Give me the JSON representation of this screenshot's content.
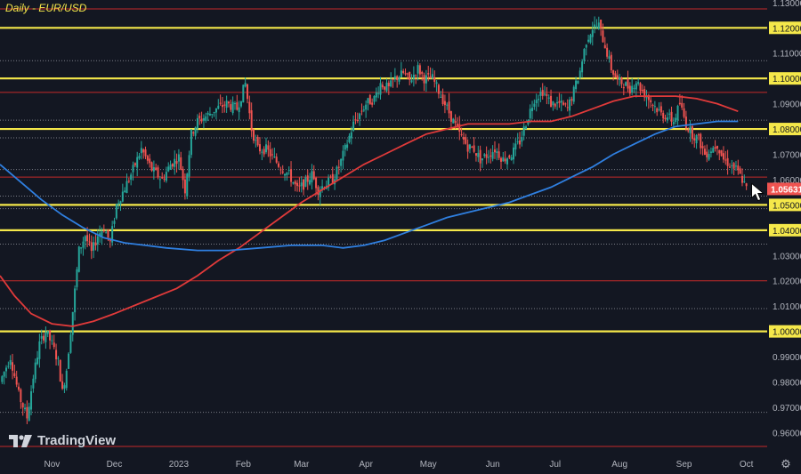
{
  "chart_title": "Daily - EUR/USD",
  "brand_label": "TradingView",
  "settings_icon": "gear-icon",
  "colors": {
    "background": "#131722",
    "grid_text": "#b2b5be",
    "yellow_level": "#f5e84a",
    "red_level": "#c42a2a",
    "dotted_level": "#9598a1",
    "ma_red": "#e03a3a",
    "ma_blue": "#2f7fe0",
    "candle_up": "#26a69a",
    "candle_down": "#ef5350",
    "price_label_bg": "#ef5350"
  },
  "chart_data": {
    "type": "candlestick",
    "title": "Daily - EUR/USD",
    "ylim": [
      0.951,
      1.131
    ],
    "y_ticks": [
      "0.96000",
      "0.97000",
      "0.98000",
      "0.99000",
      "1.00000",
      "1.01000",
      "1.02000",
      "1.03000",
      "1.04000",
      "1.05000",
      "1.06000",
      "1.07000",
      "1.08000",
      "1.09000",
      "1.10000",
      "1.11000",
      "1.12000",
      "1.13000"
    ],
    "x_ticks": [
      {
        "label": "Nov",
        "day": 0
      },
      {
        "label": "Dec",
        "day": 30
      },
      {
        "label": "2023",
        "day": 61
      },
      {
        "label": "Feb",
        "day": 92
      },
      {
        "label": "Mar",
        "day": 120
      },
      {
        "label": "Apr",
        "day": 151
      },
      {
        "label": "May",
        "day": 181
      },
      {
        "label": "Jun",
        "day": 212
      },
      {
        "label": "Jul",
        "day": 242
      },
      {
        "label": "Aug",
        "day": 273
      },
      {
        "label": "Sep",
        "day": 304
      },
      {
        "label": "Oct",
        "day": 334
      }
    ],
    "day_range": [
      -25,
      344
    ],
    "yellow_levels": [
      1.12,
      1.1,
      1.08,
      1.05,
      1.04,
      1.0
    ],
    "red_levels": [
      1.1275,
      1.0945,
      1.061,
      1.02,
      0.9545
    ],
    "dotted_levels": [
      1.107,
      1.0835,
      1.0765,
      1.064,
      1.0535,
      1.0485,
      1.0345,
      1.009,
      0.968
    ],
    "current_price": "1.05631",
    "current_price_value": 1.05631,
    "price_path": [
      [
        -25,
        0.98
      ],
      [
        -20,
        0.99
      ],
      [
        -16,
        0.975
      ],
      [
        -12,
        0.966
      ],
      [
        -9,
        0.982
      ],
      [
        -6,
        0.995
      ],
      [
        -3,
        1.0
      ],
      [
        0,
        0.995
      ],
      [
        3,
        0.988
      ],
      [
        5,
        0.976
      ],
      [
        7,
        0.985
      ],
      [
        10,
        1.008
      ],
      [
        13,
        1.032
      ],
      [
        16,
        1.038
      ],
      [
        19,
        1.031
      ],
      [
        22,
        1.038
      ],
      [
        25,
        1.041
      ],
      [
        28,
        1.035
      ],
      [
        31,
        1.05
      ],
      [
        34,
        1.055
      ],
      [
        38,
        1.062
      ],
      [
        43,
        1.072
      ],
      [
        48,
        1.064
      ],
      [
        53,
        1.06
      ],
      [
        57,
        1.066
      ],
      [
        61,
        1.069
      ],
      [
        64,
        1.056
      ],
      [
        67,
        1.078
      ],
      [
        70,
        1.083
      ],
      [
        74,
        1.085
      ],
      [
        79,
        1.088
      ],
      [
        84,
        1.09
      ],
      [
        89,
        1.088
      ],
      [
        93,
        1.098
      ],
      [
        96,
        1.08
      ],
      [
        99,
        1.072
      ],
      [
        103,
        1.072
      ],
      [
        107,
        1.068
      ],
      [
        110,
        1.065
      ],
      [
        114,
        1.062
      ],
      [
        118,
        1.056
      ],
      [
        121,
        1.058
      ],
      [
        125,
        1.062
      ],
      [
        128,
        1.056
      ],
      [
        131,
        1.058
      ],
      [
        135,
        1.06
      ],
      [
        138,
        1.065
      ],
      [
        141,
        1.072
      ],
      [
        145,
        1.082
      ],
      [
        148,
        1.086
      ],
      [
        151,
        1.09
      ],
      [
        155,
        1.092
      ],
      [
        158,
        1.098
      ],
      [
        162,
        1.096
      ],
      [
        165,
        1.1
      ],
      [
        169,
        1.102
      ],
      [
        172,
        1.099
      ],
      [
        176,
        1.104
      ],
      [
        179,
        1.1
      ],
      [
        183,
        1.1
      ],
      [
        186,
        1.095
      ],
      [
        189,
        1.09
      ],
      [
        193,
        1.083
      ],
      [
        196,
        1.078
      ],
      [
        200,
        1.073
      ],
      [
        203,
        1.072
      ],
      [
        206,
        1.068
      ],
      [
        210,
        1.07
      ],
      [
        213,
        1.072
      ],
      [
        217,
        1.068
      ],
      [
        221,
        1.07
      ],
      [
        225,
        1.075
      ],
      [
        229,
        1.085
      ],
      [
        232,
        1.092
      ],
      [
        236,
        1.095
      ],
      [
        240,
        1.09
      ],
      [
        244,
        1.09
      ],
      [
        248,
        1.088
      ],
      [
        251,
        1.095
      ],
      [
        254,
        1.103
      ],
      [
        257,
        1.115
      ],
      [
        260,
        1.12
      ],
      [
        263,
        1.121
      ],
      [
        266,
        1.113
      ],
      [
        269,
        1.104
      ],
      [
        272,
        1.099
      ],
      [
        275,
        1.098
      ],
      [
        278,
        1.096
      ],
      [
        281,
        1.099
      ],
      [
        284,
        1.095
      ],
      [
        287,
        1.092
      ],
      [
        290,
        1.089
      ],
      [
        293,
        1.086
      ],
      [
        296,
        1.085
      ],
      [
        299,
        1.083
      ],
      [
        302,
        1.09
      ],
      [
        305,
        1.082
      ],
      [
        308,
        1.078
      ],
      [
        311,
        1.076
      ],
      [
        314,
        1.07
      ],
      [
        317,
        1.072
      ],
      [
        320,
        1.074
      ],
      [
        323,
        1.068
      ],
      [
        326,
        1.066
      ],
      [
        329,
        1.064
      ],
      [
        332,
        1.06
      ],
      [
        334,
        1.0563
      ]
    ],
    "series": [
      {
        "name": "Red moving average",
        "color": "#e03a3a",
        "points": [
          [
            -25,
            1.022
          ],
          [
            -18,
            1.014
          ],
          [
            -10,
            1.007
          ],
          [
            0,
            1.003
          ],
          [
            10,
            1.002
          ],
          [
            20,
            1.004
          ],
          [
            30,
            1.007
          ],
          [
            45,
            1.012
          ],
          [
            60,
            1.017
          ],
          [
            70,
            1.022
          ],
          [
            80,
            1.028
          ],
          [
            90,
            1.033
          ],
          [
            100,
            1.039
          ],
          [
            110,
            1.045
          ],
          [
            120,
            1.051
          ],
          [
            130,
            1.056
          ],
          [
            140,
            1.061
          ],
          [
            150,
            1.066
          ],
          [
            160,
            1.07
          ],
          [
            170,
            1.074
          ],
          [
            180,
            1.078
          ],
          [
            190,
            1.08
          ],
          [
            200,
            1.082
          ],
          [
            210,
            1.082
          ],
          [
            220,
            1.082
          ],
          [
            230,
            1.083
          ],
          [
            240,
            1.083
          ],
          [
            250,
            1.085
          ],
          [
            260,
            1.088
          ],
          [
            270,
            1.091
          ],
          [
            280,
            1.093
          ],
          [
            290,
            1.093
          ],
          [
            300,
            1.093
          ],
          [
            310,
            1.092
          ],
          [
            320,
            1.09
          ],
          [
            330,
            1.087
          ]
        ]
      },
      {
        "name": "Blue moving average",
        "color": "#2f7fe0",
        "points": [
          [
            -25,
            1.066
          ],
          [
            -15,
            1.059
          ],
          [
            -5,
            1.052
          ],
          [
            5,
            1.046
          ],
          [
            15,
            1.041
          ],
          [
            25,
            1.037
          ],
          [
            35,
            1.035
          ],
          [
            45,
            1.034
          ],
          [
            55,
            1.033
          ],
          [
            70,
            1.032
          ],
          [
            85,
            1.032
          ],
          [
            100,
            1.033
          ],
          [
            115,
            1.034
          ],
          [
            130,
            1.034
          ],
          [
            140,
            1.033
          ],
          [
            150,
            1.034
          ],
          [
            160,
            1.036
          ],
          [
            170,
            1.039
          ],
          [
            180,
            1.042
          ],
          [
            190,
            1.045
          ],
          [
            200,
            1.047
          ],
          [
            210,
            1.049
          ],
          [
            220,
            1.051
          ],
          [
            230,
            1.054
          ],
          [
            240,
            1.057
          ],
          [
            250,
            1.061
          ],
          [
            260,
            1.065
          ],
          [
            270,
            1.07
          ],
          [
            280,
            1.074
          ],
          [
            290,
            1.078
          ],
          [
            300,
            1.081
          ],
          [
            310,
            1.082
          ],
          [
            320,
            1.083
          ],
          [
            330,
            1.083
          ]
        ]
      }
    ]
  }
}
